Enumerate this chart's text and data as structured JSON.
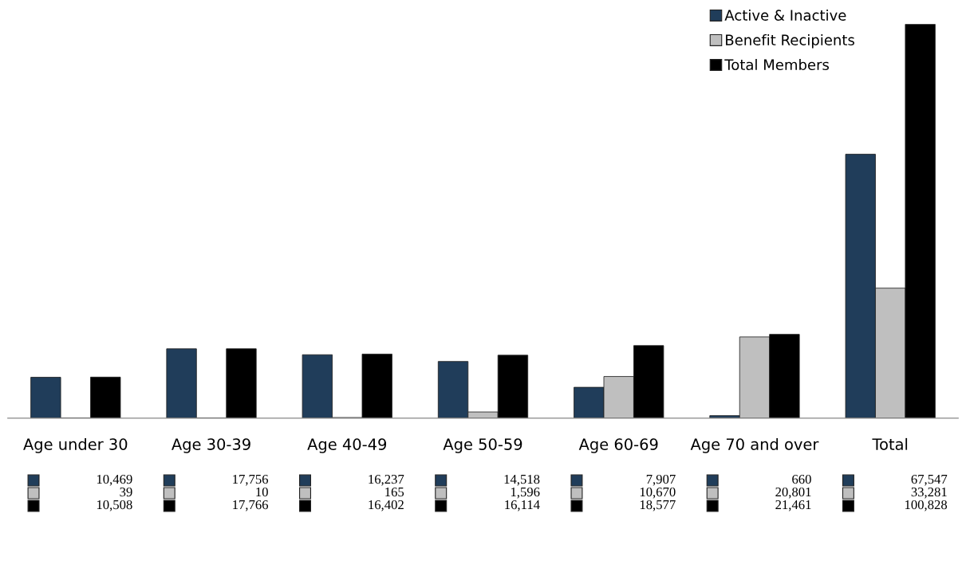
{
  "chart_data": {
    "type": "bar",
    "categories": [
      "Age under 30",
      "Age 30-39",
      "Age 40-49",
      "Age 50-59",
      "Age 60-69",
      "Age 70 and over",
      "Total"
    ],
    "series": [
      {
        "name": "Active & Inactive",
        "color": "#203d5a",
        "values": [
          10469,
          17756,
          16237,
          14518,
          7907,
          660,
          67547
        ],
        "value_labels": [
          "10,469",
          "17,756",
          "16,237",
          "14,518",
          "7,907",
          "660",
          "67,547"
        ]
      },
      {
        "name": "Benefit Recipients",
        "color": "#bfbfbf",
        "values": [
          39,
          10,
          165,
          1596,
          10670,
          20801,
          33281
        ],
        "value_labels": [
          "39",
          "10",
          "165",
          "1,596",
          "10,670",
          "20,801",
          "33,281"
        ]
      },
      {
        "name": "Total Members",
        "color": "#000000",
        "values": [
          10508,
          17766,
          16402,
          16114,
          18577,
          21461,
          100828
        ],
        "value_labels": [
          "10,508",
          "17,766",
          "16,402",
          "16,114",
          "18,577",
          "21,461",
          "100,828"
        ]
      }
    ],
    "legend": "top right",
    "grid": false
  }
}
